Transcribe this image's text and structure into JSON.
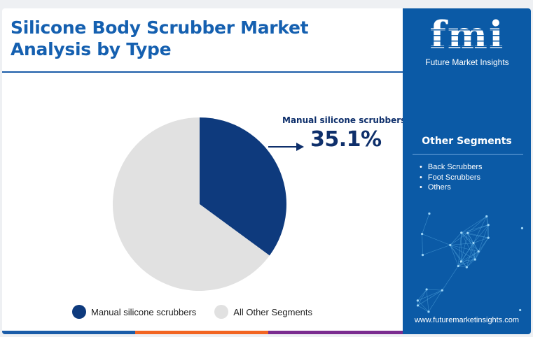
{
  "title_line1": "Silicone Body Scrubber Market",
  "title_line2": "Analysis by Type",
  "chart_data": {
    "type": "pie",
    "slices": [
      {
        "name": "Manual silicone scrubbers",
        "value": 35.1,
        "color": "#0e3a7d"
      },
      {
        "name": "All Other Segments",
        "value": 64.9,
        "color": "#e1e1e1"
      }
    ],
    "callout": {
      "label": "Manual silicone scrubbers",
      "value": "35.1%"
    },
    "legend_position": "bottom"
  },
  "legend": [
    {
      "label": "Manual silicone scrubbers",
      "color": "#0e3a7d"
    },
    {
      "label": "All Other Segments",
      "color": "#e1e1e1"
    }
  ],
  "sidebar": {
    "logo": "fmi",
    "logo_subtitle": "Future Market Insights",
    "segments_title": "Other Segments",
    "segments": [
      "Back Scrubbers",
      "Foot Scrubbers",
      "Others"
    ],
    "website": "www.futuremarketinsights.com"
  },
  "colors": {
    "title": "#1560b0",
    "sidebar_bg": "#0b5aa6",
    "bottom_bar": [
      "#1a5ca8",
      "#f26522",
      "#7a2c8f"
    ]
  }
}
